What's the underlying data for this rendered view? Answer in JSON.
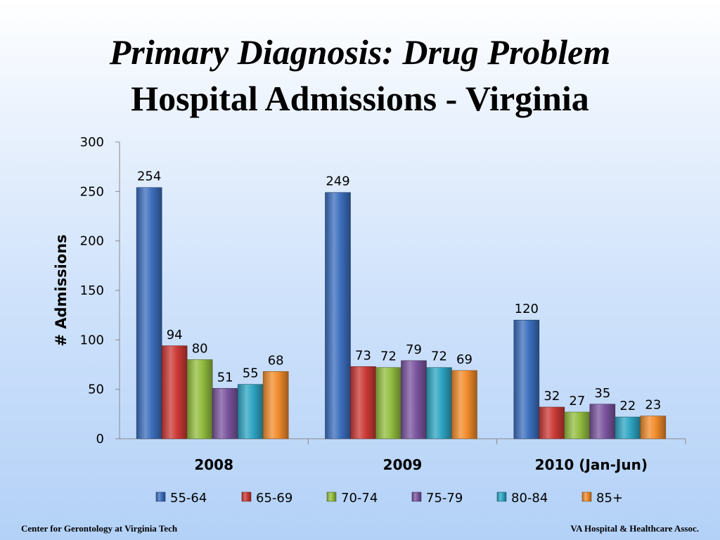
{
  "slide": {
    "title_line1": "Primary Diagnosis: Drug Problem",
    "title_line2": "Hospital Admissions - Virginia",
    "footer_left": "Center for Gerontology at Virginia Tech",
    "footer_right": "VA Hospital  & Healthcare Assoc."
  },
  "chart_data": {
    "type": "bar",
    "title": "Primary Diagnosis: Drug Problem Hospital Admissions - Virginia",
    "ylabel": "# Admissions",
    "xlabel": "",
    "ylim": [
      0,
      300
    ],
    "yticks": [
      0,
      50,
      100,
      150,
      200,
      250,
      300
    ],
    "categories": [
      "2008",
      "2009",
      "2010 (Jan-Jun)"
    ],
    "series": [
      {
        "name": "55-64",
        "values": [
          254,
          249,
          120
        ],
        "color": "#3c6fbe"
      },
      {
        "name": "65-69",
        "values": [
          94,
          73,
          32
        ],
        "color": "#cc3a36"
      },
      {
        "name": "70-74",
        "values": [
          80,
          72,
          27
        ],
        "color": "#93bd40"
      },
      {
        "name": "75-79",
        "values": [
          51,
          79,
          35
        ],
        "color": "#7b559f"
      },
      {
        "name": "80-84",
        "values": [
          55,
          72,
          22
        ],
        "color": "#2ea5c3"
      },
      {
        "name": "85+",
        "values": [
          68,
          69,
          23
        ],
        "color": "#f28c2c"
      }
    ],
    "legend_position": "bottom",
    "grid": false,
    "data_labels": true
  }
}
